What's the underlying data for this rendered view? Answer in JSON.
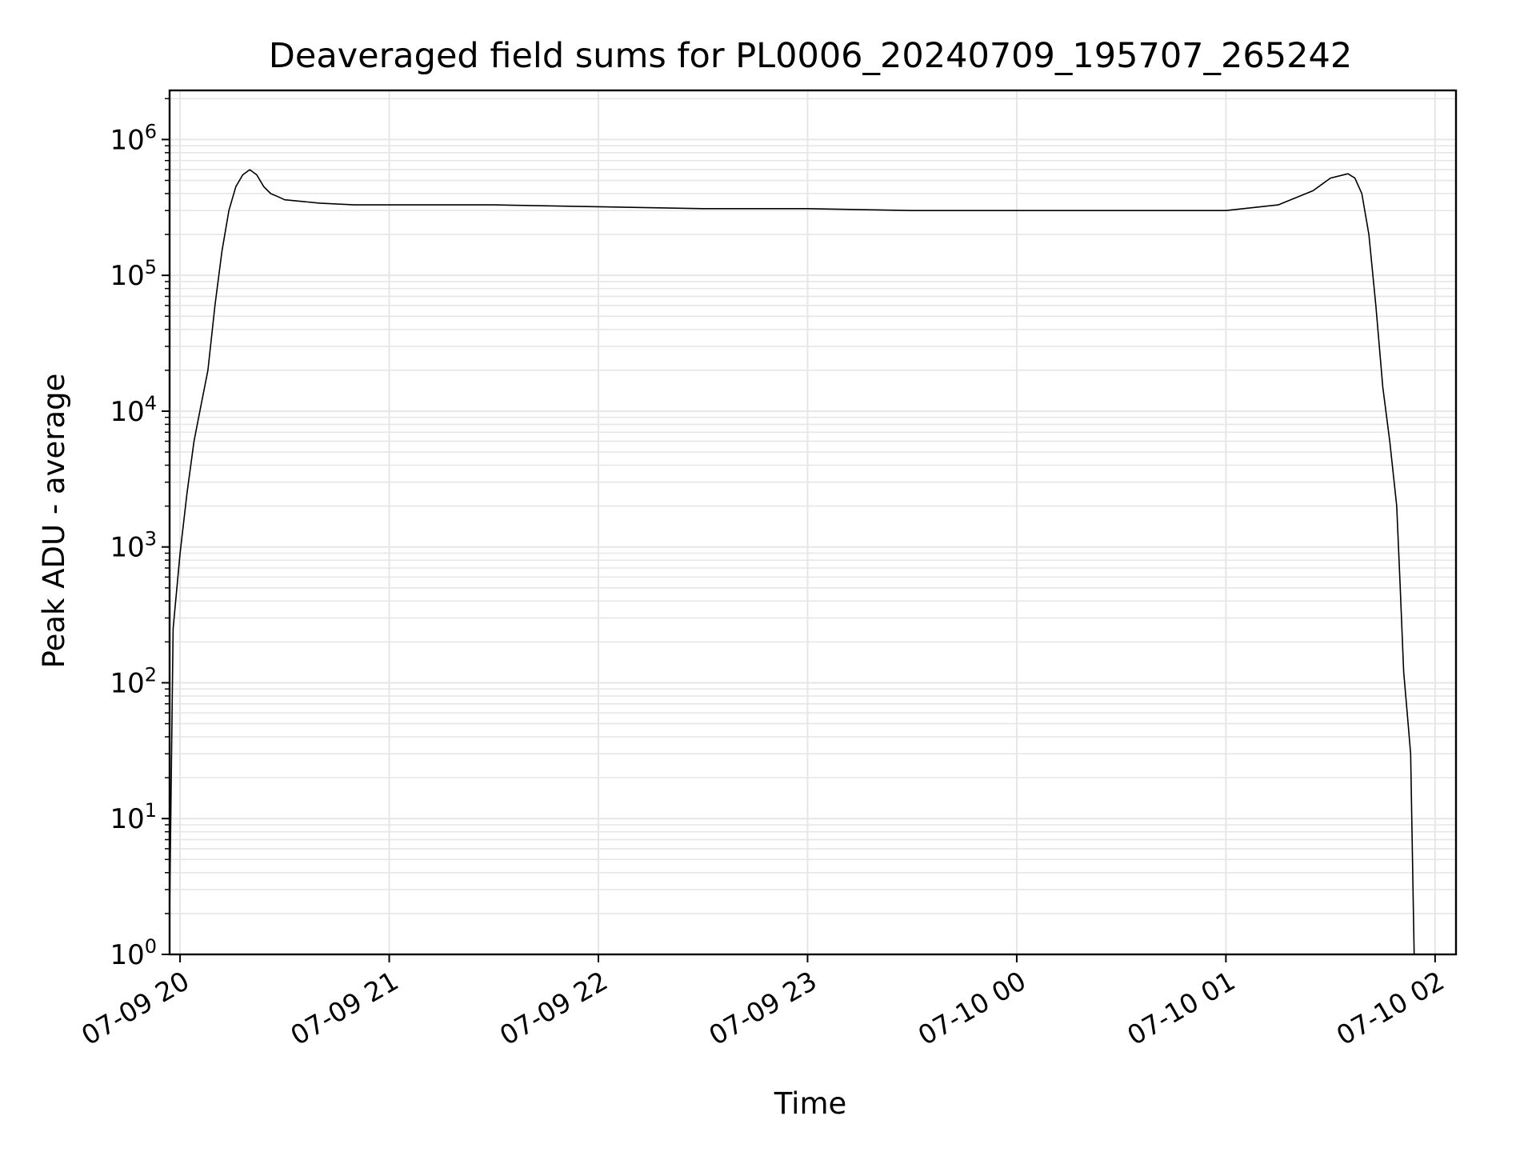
{
  "chart_data": {
    "type": "line",
    "title": "Deaveraged field sums for PL0006_20240709_195707_265242",
    "xlabel": "Time",
    "ylabel": "Peak ADU - average",
    "yscale": "log",
    "ylim": [
      1,
      2300000
    ],
    "xlim": [
      "2024-07-09 19:57",
      "2024-07-10 02:06"
    ],
    "grid": true,
    "line_color": "#000000",
    "grid_color": "#e6e6e6",
    "x_ticks": [
      {
        "t": "2024-07-09 20:00",
        "label": "07-09 20"
      },
      {
        "t": "2024-07-09 21:00",
        "label": "07-09 21"
      },
      {
        "t": "2024-07-09 22:00",
        "label": "07-09 22"
      },
      {
        "t": "2024-07-09 23:00",
        "label": "07-09 23"
      },
      {
        "t": "2024-07-10 00:00",
        "label": "07-10 00"
      },
      {
        "t": "2024-07-10 01:00",
        "label": "07-10 01"
      },
      {
        "t": "2024-07-10 02:00",
        "label": "07-10 02"
      }
    ],
    "y_ticks": [
      {
        "value": 1,
        "base": "10",
        "exp": "0"
      },
      {
        "value": 10,
        "base": "10",
        "exp": "1"
      },
      {
        "value": 100,
        "base": "10",
        "exp": "2"
      },
      {
        "value": 1000,
        "base": "10",
        "exp": "3"
      },
      {
        "value": 10000,
        "base": "10",
        "exp": "4"
      },
      {
        "value": 100000,
        "base": "10",
        "exp": "5"
      },
      {
        "value": 1000000,
        "base": "10",
        "exp": "6"
      }
    ],
    "series": [
      {
        "x": [
          "2024-07-09 19:57",
          "2024-07-09 19:58",
          "2024-07-09 20:00",
          "2024-07-09 20:02",
          "2024-07-09 20:04",
          "2024-07-09 20:06",
          "2024-07-09 20:08",
          "2024-07-09 20:10",
          "2024-07-09 20:12",
          "2024-07-09 20:14",
          "2024-07-09 20:16",
          "2024-07-09 20:18",
          "2024-07-09 20:20",
          "2024-07-09 20:22",
          "2024-07-09 20:24",
          "2024-07-09 20:26",
          "2024-07-09 20:28",
          "2024-07-09 20:30",
          "2024-07-09 20:35",
          "2024-07-09 20:40",
          "2024-07-09 20:50",
          "2024-07-09 21:00",
          "2024-07-09 21:30",
          "2024-07-09 22:00",
          "2024-07-09 22:30",
          "2024-07-09 23:00",
          "2024-07-09 23:30",
          "2024-07-10 00:00",
          "2024-07-10 00:30",
          "2024-07-10 01:00",
          "2024-07-10 01:15",
          "2024-07-10 01:25",
          "2024-07-10 01:30",
          "2024-07-10 01:35",
          "2024-07-10 01:37",
          "2024-07-10 01:39",
          "2024-07-10 01:41",
          "2024-07-10 01:43",
          "2024-07-10 01:45",
          "2024-07-10 01:47",
          "2024-07-10 01:49",
          "2024-07-10 01:50",
          "2024-07-10 01:51",
          "2024-07-10 01:52",
          "2024-07-10 01:53",
          "2024-07-10 01:54"
        ],
        "values": [
          2,
          250,
          900,
          2500,
          6000,
          11000,
          20000,
          60000,
          150000,
          300000,
          450000,
          550000,
          600000,
          550000,
          450000,
          400000,
          380000,
          360000,
          350000,
          340000,
          330000,
          330000,
          330000,
          320000,
          310000,
          310000,
          300000,
          300000,
          300000,
          300000,
          330000,
          420000,
          520000,
          560000,
          520000,
          400000,
          200000,
          60000,
          15000,
          6000,
          2000,
          500,
          120,
          60,
          30,
          1
        ]
      }
    ]
  }
}
